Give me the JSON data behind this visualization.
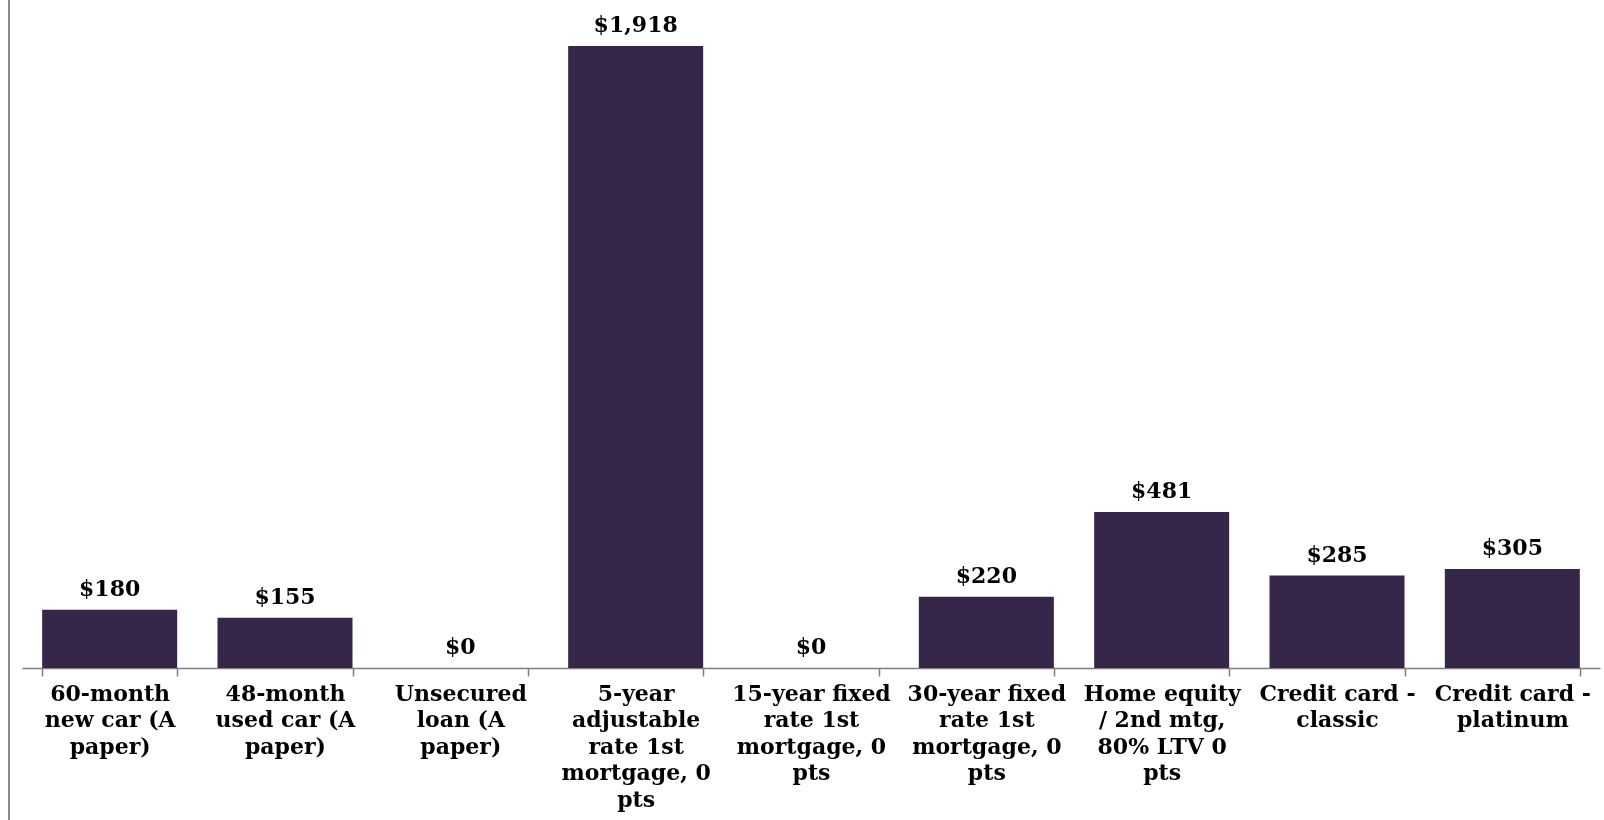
{
  "chart_data": {
    "type": "bar",
    "categories": [
      "60-month new car (A paper)",
      "48-month used car (A paper)",
      "Unsecured loan (A paper)",
      "5-year adjustable rate 1st mortgage, 0 pts",
      "15-year fixed rate 1st mortgage, 0 pts",
      "30-year fixed rate 1st mortgage, 0 pts",
      "Home equity / 2nd mtg, 80% LTV 0 pts",
      "Credit card - classic",
      "Credit card - platinum"
    ],
    "values": [
      180,
      155,
      0,
      1918,
      0,
      220,
      481,
      285,
      305
    ],
    "value_labels": [
      "$180",
      "$155",
      "$0",
      "$1,918",
      "$0",
      "$220",
      "$481",
      "$285",
      "$305"
    ],
    "color": "#362649"
  }
}
